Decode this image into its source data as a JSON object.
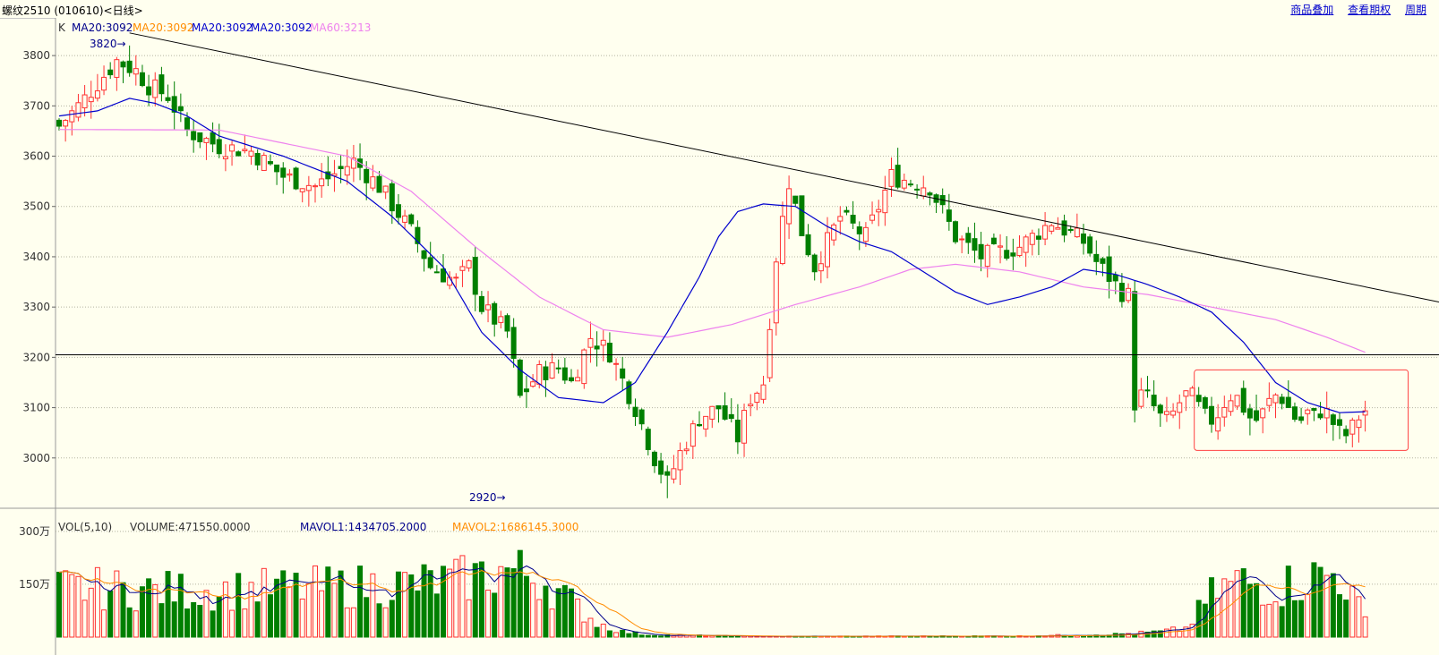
{
  "header": {
    "title": "螺纹2510 (010610)<日线>",
    "links": [
      "商品叠加",
      "查看期权",
      "周期"
    ]
  },
  "colors": {
    "up": "#ff3232",
    "down": "#007f00",
    "ma20_1": "#00008b",
    "ma20_2": "#ff8c00",
    "ma20_3": "#0000cd",
    "ma60": "#ee82ee",
    "trend": "#000000",
    "box": "#ff4040",
    "mavol1": "#00008b",
    "mavol2": "#ff8c00"
  },
  "price_panel": {
    "legend": [
      "K",
      "MA20:3092",
      "MA20:3092",
      "MA20:3092",
      "MA20:3092",
      "MA60:3213"
    ],
    "y_ticks": [
      3800,
      3700,
      3600,
      3500,
      3400,
      3300,
      3200,
      3100,
      3000
    ],
    "ylim": [
      2900,
      3850
    ],
    "high_label": "3820→",
    "low_label": "2920→",
    "support_level": 3205
  },
  "volume_panel": {
    "legend": {
      "vol": "VOL(5,10)",
      "volume": "VOLUME:471550.0000",
      "mavol1": "MAVOL1:1434705.2000",
      "mavol2": "MAVOL2:1686145.3000"
    },
    "y_tick_labels": [
      "300万",
      "150万"
    ],
    "y_tick_values": [
      3000000,
      1500000
    ],
    "ymax": 3300000
  },
  "chart_data": {
    "type": "candlestick",
    "period": "日线",
    "series_count": 205,
    "ma60_anchors": [
      [
        0,
        3653
      ],
      [
        25,
        3652
      ],
      [
        45,
        3600
      ],
      [
        55,
        3530
      ],
      [
        65,
        3420
      ],
      [
        75,
        3320
      ],
      [
        85,
        3255
      ],
      [
        95,
        3240
      ],
      [
        105,
        3265
      ],
      [
        115,
        3305
      ],
      [
        125,
        3340
      ],
      [
        133,
        3375
      ],
      [
        140,
        3385
      ],
      [
        150,
        3370
      ],
      [
        160,
        3340
      ],
      [
        170,
        3325
      ],
      [
        180,
        3300
      ],
      [
        190,
        3275
      ],
      [
        198,
        3240
      ],
      [
        204,
        3210
      ]
    ],
    "ma20_anchors": [
      [
        0,
        3680
      ],
      [
        6,
        3690
      ],
      [
        11,
        3715
      ],
      [
        15,
        3705
      ],
      [
        20,
        3680
      ],
      [
        25,
        3640
      ],
      [
        35,
        3600
      ],
      [
        45,
        3550
      ],
      [
        52,
        3480
      ],
      [
        60,
        3380
      ],
      [
        66,
        3250
      ],
      [
        72,
        3175
      ],
      [
        78,
        3120
      ],
      [
        85,
        3110
      ],
      [
        90,
        3150
      ],
      [
        95,
        3250
      ],
      [
        100,
        3360
      ],
      [
        103,
        3440
      ],
      [
        106,
        3490
      ],
      [
        110,
        3505
      ],
      [
        115,
        3500
      ],
      [
        120,
        3460
      ],
      [
        125,
        3430
      ],
      [
        130,
        3410
      ],
      [
        135,
        3370
      ],
      [
        140,
        3330
      ],
      [
        145,
        3305
      ],
      [
        150,
        3320
      ],
      [
        155,
        3340
      ],
      [
        160,
        3375
      ],
      [
        165,
        3365
      ],
      [
        170,
        3345
      ],
      [
        175,
        3320
      ],
      [
        180,
        3290
      ],
      [
        185,
        3230
      ],
      [
        190,
        3150
      ],
      [
        195,
        3110
      ],
      [
        200,
        3090
      ],
      [
        204,
        3092
      ]
    ]
  }
}
